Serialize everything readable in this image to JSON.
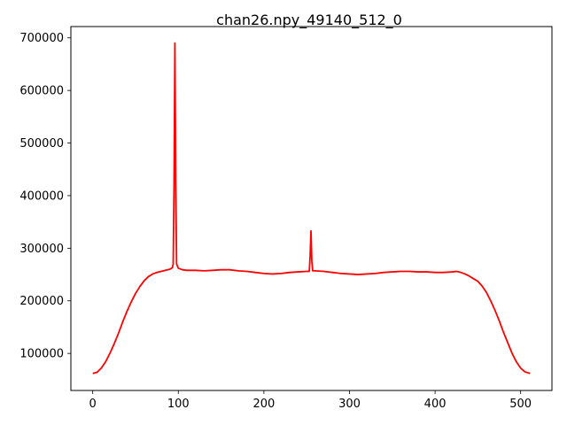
{
  "chart_data": {
    "type": "line",
    "title": "chan26.npy_49140_512_0",
    "xlabel": "",
    "ylabel": "",
    "xlim": [
      -25.55,
      536.55
    ],
    "ylim": [
      29550,
      721450
    ],
    "x_ticks": [
      0,
      100,
      200,
      300,
      400,
      500
    ],
    "y_ticks": [
      100000,
      200000,
      300000,
      400000,
      500000,
      600000,
      700000
    ],
    "x_tick_labels": [
      "0",
      "100",
      "200",
      "300",
      "400",
      "500"
    ],
    "y_tick_labels": [
      "100000",
      "200000",
      "300000",
      "400000",
      "500000",
      "600000",
      "700000"
    ],
    "grid": false,
    "series": [
      {
        "color": "#ff0000",
        "points": [
          [
            0,
            62000
          ],
          [
            5,
            64000
          ],
          [
            10,
            72000
          ],
          [
            15,
            84000
          ],
          [
            20,
            100000
          ],
          [
            25,
            118000
          ],
          [
            30,
            138000
          ],
          [
            35,
            160000
          ],
          [
            40,
            180000
          ],
          [
            45,
            198000
          ],
          [
            50,
            214000
          ],
          [
            55,
            227000
          ],
          [
            60,
            238000
          ],
          [
            65,
            246000
          ],
          [
            70,
            251000
          ],
          [
            75,
            254000
          ],
          [
            80,
            256000
          ],
          [
            85,
            258000
          ],
          [
            90,
            260000
          ],
          [
            93,
            263000
          ],
          [
            94,
            270000
          ],
          [
            95,
            420000
          ],
          [
            96,
            690000
          ],
          [
            97,
            420000
          ],
          [
            98,
            270000
          ],
          [
            100,
            262000
          ],
          [
            105,
            259000
          ],
          [
            110,
            258000
          ],
          [
            120,
            258000
          ],
          [
            130,
            257000
          ],
          [
            140,
            258000
          ],
          [
            150,
            259000
          ],
          [
            160,
            259000
          ],
          [
            170,
            257000
          ],
          [
            180,
            256000
          ],
          [
            190,
            254000
          ],
          [
            200,
            252000
          ],
          [
            210,
            251000
          ],
          [
            220,
            252000
          ],
          [
            230,
            254000
          ],
          [
            240,
            255000
          ],
          [
            250,
            256000
          ],
          [
            253,
            256000
          ],
          [
            254,
            285000
          ],
          [
            255,
            333000
          ],
          [
            256,
            275000
          ],
          [
            257,
            257000
          ],
          [
            260,
            257000
          ],
          [
            270,
            256000
          ],
          [
            280,
            254000
          ],
          [
            290,
            252000
          ],
          [
            300,
            251000
          ],
          [
            310,
            250000
          ],
          [
            320,
            251000
          ],
          [
            330,
            252000
          ],
          [
            340,
            254000
          ],
          [
            350,
            255000
          ],
          [
            360,
            256000
          ],
          [
            370,
            256000
          ],
          [
            380,
            255000
          ],
          [
            390,
            255000
          ],
          [
            400,
            254000
          ],
          [
            410,
            254000
          ],
          [
            420,
            255000
          ],
          [
            425,
            256000
          ],
          [
            430,
            254000
          ],
          [
            435,
            251000
          ],
          [
            440,
            247000
          ],
          [
            445,
            242000
          ],
          [
            450,
            237000
          ],
          [
            455,
            228000
          ],
          [
            460,
            216000
          ],
          [
            465,
            200000
          ],
          [
            470,
            182000
          ],
          [
            475,
            162000
          ],
          [
            480,
            140000
          ],
          [
            485,
            120000
          ],
          [
            490,
            100000
          ],
          [
            495,
            84000
          ],
          [
            500,
            72000
          ],
          [
            505,
            65000
          ],
          [
            511,
            62000
          ]
        ]
      }
    ]
  }
}
